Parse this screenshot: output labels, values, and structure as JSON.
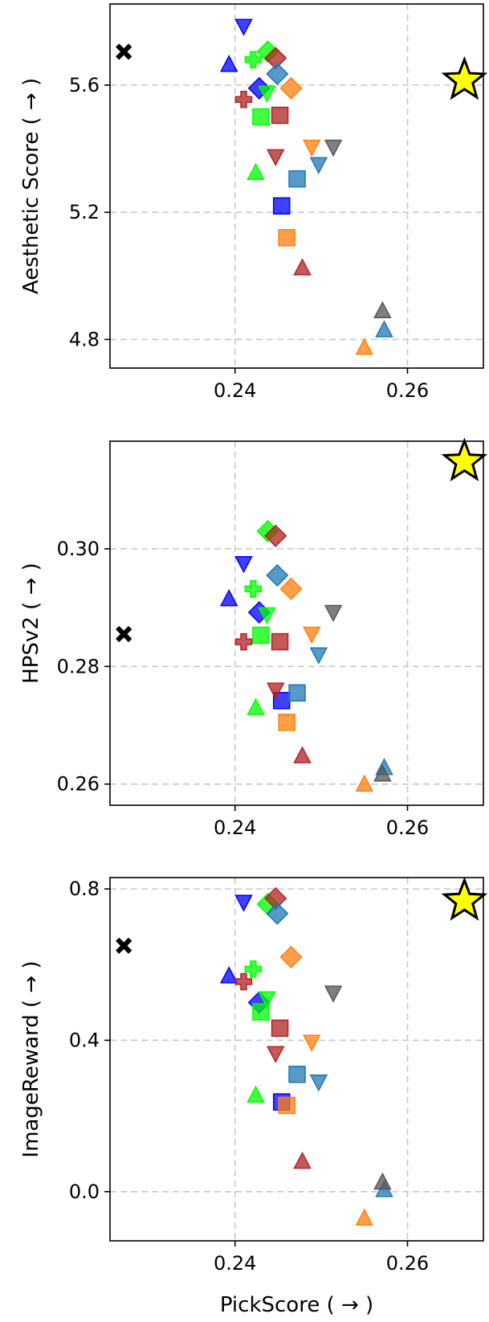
{
  "chart_data": [
    {
      "type": "scatter",
      "title": "",
      "xlabel": "",
      "ylabel": "Aesthetic Score ( → )",
      "xlim": [
        0.2255,
        0.2688
      ],
      "ylim": [
        4.71,
        5.855
      ],
      "xticks": [
        0.24,
        0.26
      ],
      "xtick_labels": [
        "0.24",
        "0.26"
      ],
      "yticks": [
        4.8,
        5.2,
        5.6
      ],
      "ytick_labels": [
        "4.8",
        "5.2",
        "5.6"
      ],
      "grid": true,
      "points": [
        {
          "x": 0.2271,
          "y": 5.705,
          "marker": "x",
          "color": "#000000"
        },
        {
          "x": 0.2666,
          "y": 5.615,
          "marker": "star",
          "color": "#ffff00"
        },
        {
          "x": 0.241,
          "y": 5.785,
          "marker": "v",
          "color": "#0000ff"
        },
        {
          "x": 0.2393,
          "y": 5.665,
          "marker": "^",
          "color": "#0000ff"
        },
        {
          "x": 0.2428,
          "y": 5.59,
          "marker": "D",
          "color": "#0000ff"
        },
        {
          "x": 0.2454,
          "y": 5.22,
          "marker": "s",
          "color": "#0000ff"
        },
        {
          "x": 0.2421,
          "y": 5.68,
          "marker": "P",
          "color": "#00ff00"
        },
        {
          "x": 0.2438,
          "y": 5.705,
          "marker": "D",
          "color": "#00ff00"
        },
        {
          "x": 0.2437,
          "y": 5.575,
          "marker": "v",
          "color": "#00ff00"
        },
        {
          "x": 0.243,
          "y": 5.5,
          "marker": "s",
          "color": "#00ff00"
        },
        {
          "x": 0.2424,
          "y": 5.325,
          "marker": "^",
          "color": "#00ff00"
        },
        {
          "x": 0.2447,
          "y": 5.685,
          "marker": "D",
          "color": "#b22222"
        },
        {
          "x": 0.241,
          "y": 5.555,
          "marker": "P",
          "color": "#b22222"
        },
        {
          "x": 0.2452,
          "y": 5.505,
          "marker": "s",
          "color": "#b22222"
        },
        {
          "x": 0.2447,
          "y": 5.375,
          "marker": "v",
          "color": "#b22222"
        },
        {
          "x": 0.2478,
          "y": 5.025,
          "marker": "^",
          "color": "#b22222"
        },
        {
          "x": 0.2449,
          "y": 5.635,
          "marker": "D",
          "color": "#1f77b4"
        },
        {
          "x": 0.2472,
          "y": 5.305,
          "marker": "s",
          "color": "#1f77b4"
        },
        {
          "x": 0.2497,
          "y": 5.35,
          "marker": "v",
          "color": "#1f77b4"
        },
        {
          "x": 0.2573,
          "y": 4.83,
          "marker": "^",
          "color": "#1f77b4"
        },
        {
          "x": 0.2465,
          "y": 5.59,
          "marker": "D",
          "color": "#ff7f0e"
        },
        {
          "x": 0.2489,
          "y": 5.405,
          "marker": "v",
          "color": "#ff7f0e"
        },
        {
          "x": 0.246,
          "y": 5.12,
          "marker": "s",
          "color": "#ff7f0e"
        },
        {
          "x": 0.255,
          "y": 4.775,
          "marker": "^",
          "color": "#ff7f0e"
        },
        {
          "x": 0.2514,
          "y": 5.405,
          "marker": "v",
          "color": "#555555"
        },
        {
          "x": 0.2571,
          "y": 4.89,
          "marker": "^",
          "color": "#555555"
        }
      ]
    },
    {
      "type": "scatter",
      "title": "",
      "xlabel": "",
      "ylabel": "HPSv2 ( → )",
      "xlim": [
        0.2255,
        0.2688
      ],
      "ylim": [
        0.2564,
        0.3183
      ],
      "xticks": [
        0.24,
        0.26
      ],
      "xtick_labels": [
        "0.24",
        "0.26"
      ],
      "yticks": [
        0.26,
        0.28,
        0.3
      ],
      "ytick_labels": [
        "0.26",
        "0.28",
        "0.30"
      ],
      "grid": true,
      "points": [
        {
          "x": 0.2271,
          "y": 0.2855,
          "marker": "x",
          "color": "#000000"
        },
        {
          "x": 0.2666,
          "y": 0.3148,
          "marker": "star",
          "color": "#ffff00"
        },
        {
          "x": 0.241,
          "y": 0.2975,
          "marker": "v",
          "color": "#0000ff"
        },
        {
          "x": 0.2393,
          "y": 0.2915,
          "marker": "^",
          "color": "#0000ff"
        },
        {
          "x": 0.2428,
          "y": 0.2892,
          "marker": "D",
          "color": "#0000ff"
        },
        {
          "x": 0.2454,
          "y": 0.2742,
          "marker": "s",
          "color": "#0000ff"
        },
        {
          "x": 0.2421,
          "y": 0.2932,
          "marker": "P",
          "color": "#00ff00"
        },
        {
          "x": 0.2438,
          "y": 0.303,
          "marker": "D",
          "color": "#00ff00"
        },
        {
          "x": 0.2437,
          "y": 0.2888,
          "marker": "v",
          "color": "#00ff00"
        },
        {
          "x": 0.243,
          "y": 0.2853,
          "marker": "s",
          "color": "#00ff00"
        },
        {
          "x": 0.2424,
          "y": 0.273,
          "marker": "^",
          "color": "#00ff00"
        },
        {
          "x": 0.2447,
          "y": 0.3022,
          "marker": "D",
          "color": "#b22222"
        },
        {
          "x": 0.241,
          "y": 0.2842,
          "marker": "P",
          "color": "#b22222"
        },
        {
          "x": 0.2452,
          "y": 0.2842,
          "marker": "s",
          "color": "#b22222"
        },
        {
          "x": 0.2447,
          "y": 0.276,
          "marker": "v",
          "color": "#b22222"
        },
        {
          "x": 0.2478,
          "y": 0.2648,
          "marker": "^",
          "color": "#b22222"
        },
        {
          "x": 0.2449,
          "y": 0.2955,
          "marker": "D",
          "color": "#1f77b4"
        },
        {
          "x": 0.2472,
          "y": 0.2755,
          "marker": "s",
          "color": "#1f77b4"
        },
        {
          "x": 0.2497,
          "y": 0.282,
          "marker": "v",
          "color": "#1f77b4"
        },
        {
          "x": 0.2573,
          "y": 0.2628,
          "marker": "^",
          "color": "#1f77b4"
        },
        {
          "x": 0.2465,
          "y": 0.2932,
          "marker": "D",
          "color": "#ff7f0e"
        },
        {
          "x": 0.2489,
          "y": 0.2855,
          "marker": "v",
          "color": "#ff7f0e"
        },
        {
          "x": 0.246,
          "y": 0.2705,
          "marker": "s",
          "color": "#ff7f0e"
        },
        {
          "x": 0.255,
          "y": 0.26,
          "marker": "^",
          "color": "#ff7f0e"
        },
        {
          "x": 0.2514,
          "y": 0.2892,
          "marker": "v",
          "color": "#555555"
        },
        {
          "x": 0.2571,
          "y": 0.2617,
          "marker": "^",
          "color": "#555555"
        }
      ]
    },
    {
      "type": "scatter",
      "title": "",
      "xlabel": "PickScore ( → )",
      "ylabel": "ImageReward ( → )",
      "xlim": [
        0.2255,
        0.2688
      ],
      "ylim": [
        -0.13,
        0.83
      ],
      "xticks": [
        0.24,
        0.26
      ],
      "xtick_labels": [
        "0.24",
        "0.26"
      ],
      "yticks": [
        0.0,
        0.4,
        0.8
      ],
      "ytick_labels": [
        "0.0",
        "0.4",
        "0.8"
      ],
      "grid": true,
      "points": [
        {
          "x": 0.2271,
          "y": 0.65,
          "marker": "x",
          "color": "#000000"
        },
        {
          "x": 0.2666,
          "y": 0.768,
          "marker": "star",
          "color": "#ffff00"
        },
        {
          "x": 0.241,
          "y": 0.765,
          "marker": "v",
          "color": "#0000ff"
        },
        {
          "x": 0.2393,
          "y": 0.57,
          "marker": "^",
          "color": "#0000ff"
        },
        {
          "x": 0.2428,
          "y": 0.5,
          "marker": "D",
          "color": "#0000ff"
        },
        {
          "x": 0.2454,
          "y": 0.237,
          "marker": "s",
          "color": "#0000ff"
        },
        {
          "x": 0.2421,
          "y": 0.588,
          "marker": "P",
          "color": "#00ff00"
        },
        {
          "x": 0.2438,
          "y": 0.76,
          "marker": "D",
          "color": "#00ff00"
        },
        {
          "x": 0.2437,
          "y": 0.51,
          "marker": "v",
          "color": "#00ff00"
        },
        {
          "x": 0.243,
          "y": 0.475,
          "marker": "s",
          "color": "#00ff00"
        },
        {
          "x": 0.2424,
          "y": 0.255,
          "marker": "^",
          "color": "#00ff00"
        },
        {
          "x": 0.2447,
          "y": 0.775,
          "marker": "D",
          "color": "#b22222"
        },
        {
          "x": 0.241,
          "y": 0.555,
          "marker": "P",
          "color": "#b22222"
        },
        {
          "x": 0.2452,
          "y": 0.432,
          "marker": "s",
          "color": "#b22222"
        },
        {
          "x": 0.2447,
          "y": 0.365,
          "marker": "v",
          "color": "#b22222"
        },
        {
          "x": 0.2478,
          "y": 0.08,
          "marker": "^",
          "color": "#b22222"
        },
        {
          "x": 0.2449,
          "y": 0.735,
          "marker": "D",
          "color": "#1f77b4"
        },
        {
          "x": 0.2472,
          "y": 0.31,
          "marker": "s",
          "color": "#1f77b4"
        },
        {
          "x": 0.2497,
          "y": 0.29,
          "marker": "v",
          "color": "#1f77b4"
        },
        {
          "x": 0.2573,
          "y": 0.005,
          "marker": "^",
          "color": "#1f77b4"
        },
        {
          "x": 0.2465,
          "y": 0.62,
          "marker": "D",
          "color": "#ff7f0e"
        },
        {
          "x": 0.2489,
          "y": 0.395,
          "marker": "v",
          "color": "#ff7f0e"
        },
        {
          "x": 0.246,
          "y": 0.228,
          "marker": "s",
          "color": "#ff7f0e"
        },
        {
          "x": 0.255,
          "y": -0.07,
          "marker": "^",
          "color": "#ff7f0e"
        },
        {
          "x": 0.2514,
          "y": 0.525,
          "marker": "v",
          "color": "#555555"
        },
        {
          "x": 0.2571,
          "y": 0.025,
          "marker": "^",
          "color": "#555555"
        }
      ]
    }
  ]
}
